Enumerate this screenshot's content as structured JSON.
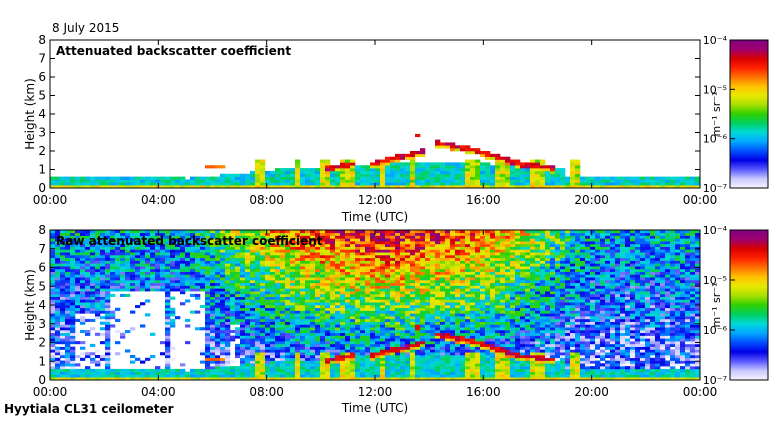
{
  "date_label": "8 July 2015",
  "footer_label": "Hyytiala CL31 ceilometer",
  "colors": {
    "colormap": [
      "#f4f4ff",
      "#c8c8ff",
      "#5858ff",
      "#0000e6",
      "#0050ff",
      "#00a8ff",
      "#00d8d8",
      "#00d060",
      "#30d000",
      "#a8e000",
      "#e8e800",
      "#ffc000",
      "#ff7000",
      "#ff2000",
      "#d80000",
      "#a00070",
      "#800080"
    ]
  },
  "chart_data": [
    {
      "type": "heatmap",
      "title": "Attenuated backscatter coefficient",
      "xlabel": "Time (UTC)",
      "ylabel": "Height (km)",
      "xlim": [
        0,
        24
      ],
      "ylim": [
        0,
        8
      ],
      "x_ticks": [
        "00:00",
        "04:00",
        "08:00",
        "12:00",
        "16:00",
        "20:00",
        "00:00"
      ],
      "y_ticks": [
        "0",
        "1",
        "2",
        "3",
        "4",
        "5",
        "6",
        "7",
        "8"
      ],
      "colorbar": {
        "label": "m⁻¹ sr⁻¹",
        "scale": "log",
        "range": [
          1e-07,
          0.0001
        ],
        "ticks": [
          "10⁻⁷",
          "10⁻⁶",
          "10⁻⁵",
          "10⁻⁴"
        ]
      }
    },
    {
      "type": "heatmap",
      "title": "Raw attenuated backscatter coefficient",
      "xlabel": "Time (UTC)",
      "ylabel": "Height (km)",
      "xlim": [
        0,
        24
      ],
      "ylim": [
        0,
        8
      ],
      "x_ticks": [
        "00:00",
        "04:00",
        "08:00",
        "12:00",
        "16:00",
        "20:00",
        "00:00"
      ],
      "y_ticks": [
        "0",
        "1",
        "2",
        "3",
        "4",
        "5",
        "6",
        "7",
        "8"
      ],
      "colorbar": {
        "label": "m⁻¹ sr⁻¹",
        "scale": "log",
        "range": [
          1e-07,
          0.0001
        ],
        "ticks": [
          "10⁻⁷",
          "10⁻⁶",
          "10⁻⁵",
          "10⁻⁴"
        ]
      }
    }
  ]
}
